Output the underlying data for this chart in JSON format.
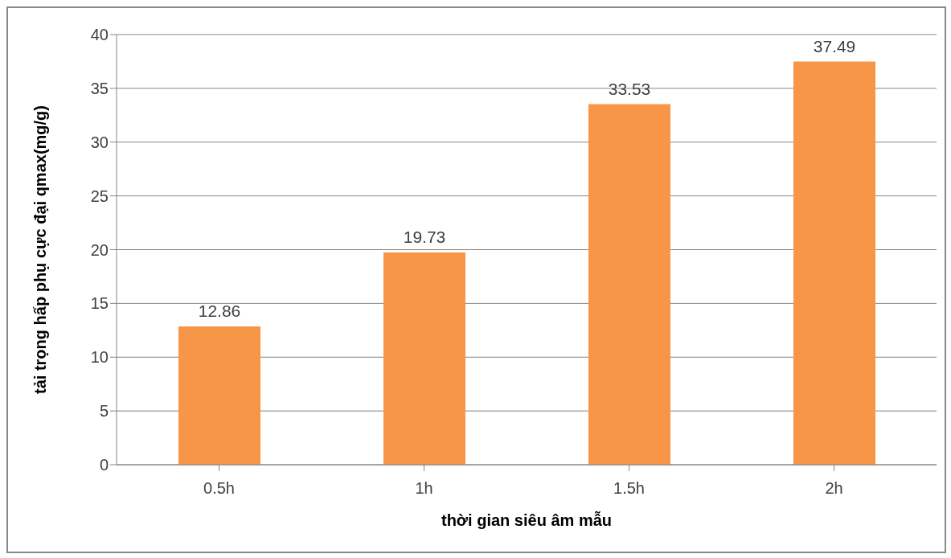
{
  "chart_data": {
    "type": "bar",
    "xlabel": "thời gian siêu âm mẫu",
    "ylabel": "tải trọng hấp phụ cực đại qmax(mg/g)",
    "categories": [
      "0.5h",
      "1h",
      "1.5h",
      "2h"
    ],
    "values": [
      12.86,
      19.73,
      33.53,
      37.49
    ],
    "color": "#f79646",
    "ylim": [
      0,
      40
    ],
    "yticks": [
      0,
      5,
      10,
      15,
      20,
      25,
      30,
      35,
      40
    ],
    "grid": "y",
    "data_labels": true
  }
}
